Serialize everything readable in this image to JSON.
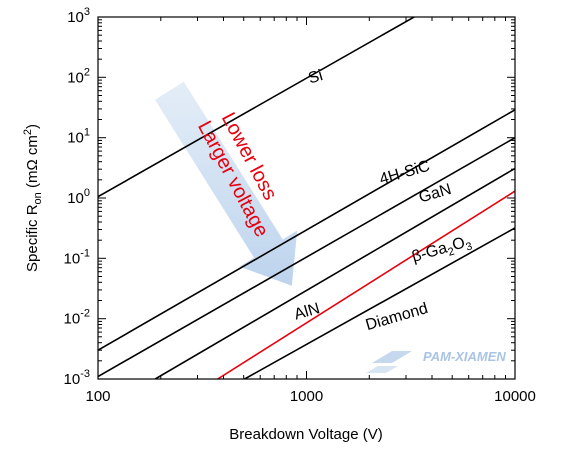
{
  "chart_data": {
    "type": "line",
    "x_scale": "log",
    "y_scale": "log",
    "xlim": [
      100,
      10000
    ],
    "ylim": [
      0.001,
      1000
    ],
    "xlabel": "Breakdown Voltage (V)",
    "ylabel": {
      "prefix": "Specific R",
      "subscript": "on",
      "unit_open": " (mΩ cm",
      "superscript": "2",
      "unit_close": ")"
    },
    "x_ticks": [
      {
        "value": 100,
        "label": "100"
      },
      {
        "value": 1000,
        "label": "1000"
      },
      {
        "value": 10000,
        "label": "10000"
      }
    ],
    "y_ticks": [
      {
        "value": 0.001,
        "base": "10",
        "exp": "-3"
      },
      {
        "value": 0.01,
        "base": "10",
        "exp": "-2"
      },
      {
        "value": 0.1,
        "base": "10",
        "exp": "-1"
      },
      {
        "value": 1,
        "base": "10",
        "exp": "0"
      },
      {
        "value": 10,
        "base": "10",
        "exp": "1"
      },
      {
        "value": 100,
        "base": "10",
        "exp": "2"
      },
      {
        "value": 1000,
        "base": "10",
        "exp": "3"
      }
    ],
    "series": [
      {
        "name": "Si",
        "color": "#000000",
        "x": [
          100,
          3280
        ],
        "y": [
          1.05,
          1000
        ]
      },
      {
        "name": "4H-SiC",
        "color": "#000000",
        "x": [
          100,
          10000
        ],
        "y": [
          0.003,
          29
        ]
      },
      {
        "name": "GaN",
        "color": "#000000",
        "x": [
          100,
          10000
        ],
        "y": [
          0.0011,
          10
        ]
      },
      {
        "name": "β-Ga₂O₃",
        "color": "#000000",
        "x": [
          188,
          10000
        ],
        "y": [
          0.001,
          3.1
        ]
      },
      {
        "name": "AlN",
        "color": "#e8000d",
        "x": [
          375,
          10000
        ],
        "y": [
          0.001,
          1.3
        ]
      },
      {
        "name": "Diamond",
        "color": "#000000",
        "x": [
          505,
          10000
        ],
        "y": [
          0.001,
          0.32
        ]
      }
    ],
    "series_labels": [
      {
        "text": "Si",
        "x": 1120,
        "y": 85
      },
      {
        "text": "4H-SiC",
        "x": 3000,
        "y": 2.2
      },
      {
        "text": "GaN",
        "x": 4200,
        "y": 1.0
      },
      {
        "base": "β-Ga",
        "sub": "2",
        "mid": "O",
        "sub2": "3",
        "x": 4500,
        "y": 0.12,
        "color": "#000000"
      },
      {
        "text": "AlN",
        "x": 1020,
        "y": 0.011,
        "color": "#e8000d"
      },
      {
        "text": "Diamond",
        "x": 2750,
        "y": 0.009
      }
    ],
    "annotations": [
      {
        "text": "Lower loss",
        "color": "#e8000d",
        "x": 390,
        "y": 22
      },
      {
        "text": "Larger voltage",
        "color": "#e8000d",
        "x": 300,
        "y": 16
      }
    ],
    "arrow": {
      "color": "#c9ddf2",
      "from": [
        220,
        60
      ],
      "to": [
        850,
        0.035
      ]
    },
    "grid": false,
    "legend": "none"
  },
  "watermark": {
    "text": "PAM-XIAMEN",
    "color": "#a9c4e4"
  }
}
